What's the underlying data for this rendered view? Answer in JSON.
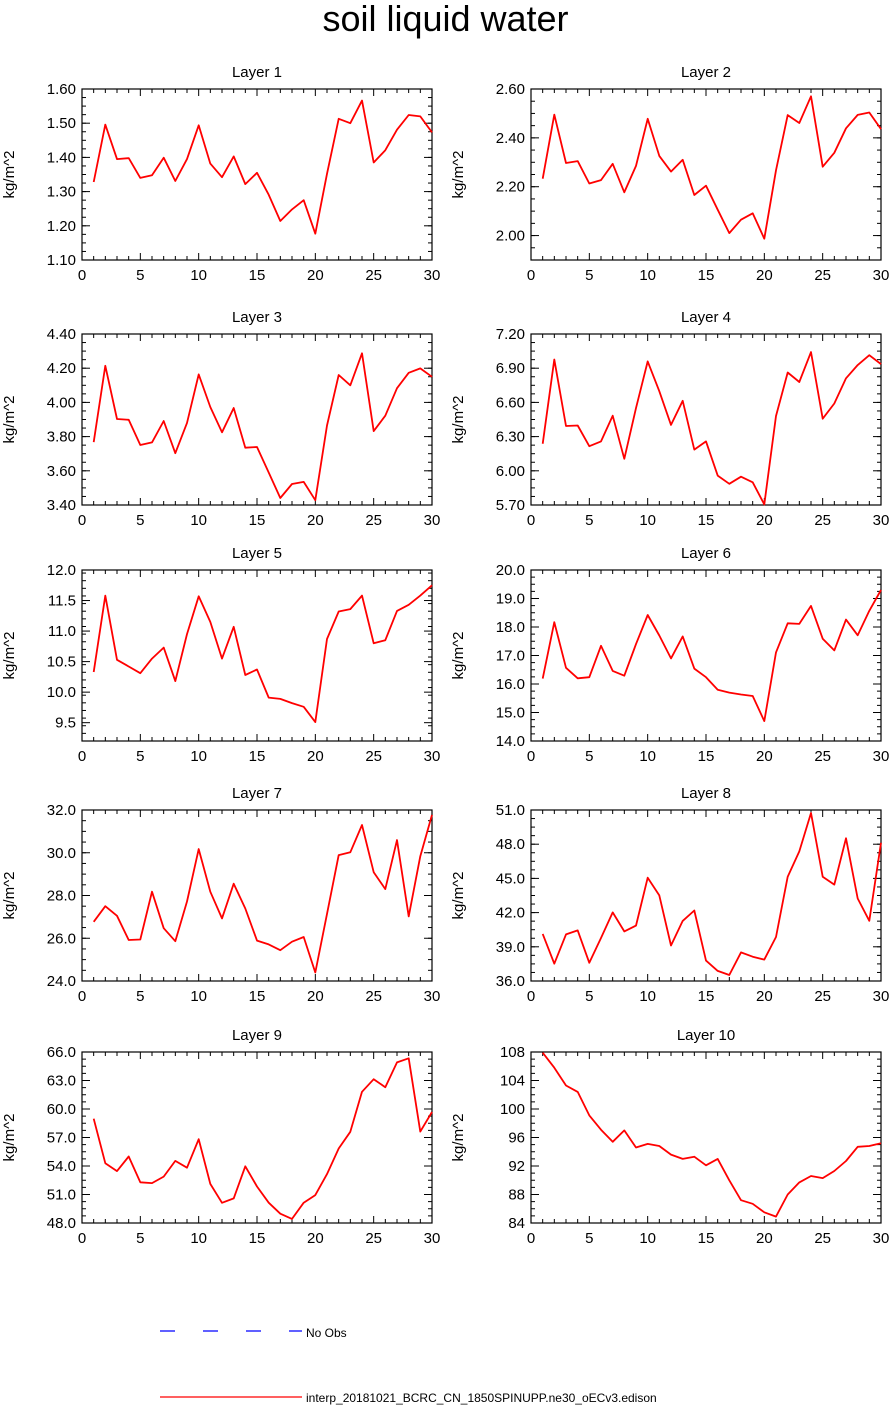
{
  "title": "soil liquid water",
  "colors": {
    "model": "#ff0000",
    "obs": "#0000ff"
  },
  "legend": [
    {
      "label": "No Obs",
      "style": "dashed",
      "color": "#0000ff"
    },
    {
      "label": "interp_20181021_BCRC_CN_1850SPINUPP.ne30_oECv3.edison",
      "style": "solid",
      "color": "#ff0000"
    }
  ],
  "chart_data": [
    {
      "type": "line",
      "title": "Layer 1",
      "ylabel": "kg/m^2",
      "xlim": [
        0,
        30
      ],
      "ylim": [
        1.1,
        1.6
      ],
      "xticks": [
        0,
        5,
        10,
        15,
        20,
        25,
        30
      ],
      "yticks": [
        "1.10",
        "1.20",
        "1.30",
        "1.40",
        "1.50",
        "1.60"
      ],
      "series": [
        {
          "x": [
            1,
            2,
            3,
            4,
            5,
            6,
            7,
            8,
            9,
            10,
            11,
            12,
            13,
            14,
            15,
            16,
            17,
            18,
            19,
            20,
            21,
            22,
            23,
            24,
            25,
            26,
            27,
            28,
            29,
            30
          ],
          "values": [
            1.328,
            1.496,
            1.395,
            1.398,
            1.34,
            1.348,
            1.399,
            1.331,
            1.395,
            1.494,
            1.382,
            1.342,
            1.403,
            1.322,
            1.355,
            1.291,
            1.214,
            1.248,
            1.275,
            1.177,
            1.352,
            1.513,
            1.5,
            1.566,
            1.385,
            1.421,
            1.481,
            1.524,
            1.52,
            1.473
          ]
        }
      ]
    },
    {
      "type": "line",
      "title": "Layer 2",
      "ylabel": "kg/m^2",
      "xlim": [
        0,
        30
      ],
      "ylim": [
        1.9,
        2.6
      ],
      "xticks": [
        0,
        5,
        10,
        15,
        20,
        25,
        30
      ],
      "yticks": [
        "2.00",
        "2.20",
        "2.40",
        "2.60"
      ],
      "series": [
        {
          "x": [
            1,
            2,
            3,
            4,
            5,
            6,
            7,
            8,
            9,
            10,
            11,
            12,
            13,
            14,
            15,
            16,
            17,
            18,
            19,
            20,
            21,
            22,
            23,
            24,
            25,
            26,
            27,
            28,
            29,
            30
          ],
          "values": [
            2.233,
            2.495,
            2.297,
            2.305,
            2.213,
            2.227,
            2.294,
            2.177,
            2.285,
            2.478,
            2.326,
            2.262,
            2.31,
            2.166,
            2.204,
            2.106,
            2.01,
            2.065,
            2.091,
            1.987,
            2.267,
            2.493,
            2.461,
            2.57,
            2.282,
            2.339,
            2.439,
            2.494,
            2.504,
            2.436
          ]
        }
      ]
    },
    {
      "type": "line",
      "title": "Layer 3",
      "ylabel": "kg/m^2",
      "xlim": [
        0,
        30
      ],
      "ylim": [
        3.4,
        4.4
      ],
      "xticks": [
        0,
        5,
        10,
        15,
        20,
        25,
        30
      ],
      "yticks": [
        "3.40",
        "3.60",
        "3.80",
        "4.00",
        "4.20",
        "4.40"
      ],
      "series": [
        {
          "x": [
            1,
            2,
            3,
            4,
            5,
            6,
            7,
            8,
            9,
            10,
            11,
            12,
            13,
            14,
            15,
            16,
            17,
            18,
            19,
            20,
            21,
            22,
            23,
            24,
            25,
            26,
            27,
            28,
            29,
            30
          ],
          "values": [
            3.768,
            4.214,
            3.903,
            3.898,
            3.751,
            3.766,
            3.891,
            3.703,
            3.88,
            4.164,
            3.973,
            3.825,
            3.967,
            3.735,
            3.739,
            3.59,
            3.441,
            3.523,
            3.535,
            3.428,
            3.865,
            4.16,
            4.1,
            4.287,
            3.832,
            3.922,
            4.083,
            4.173,
            4.199,
            4.15
          ]
        }
      ]
    },
    {
      "type": "line",
      "title": "Layer 4",
      "ylabel": "kg/m^2",
      "xlim": [
        0,
        30
      ],
      "ylim": [
        5.7,
        7.2
      ],
      "xticks": [
        0,
        5,
        10,
        15,
        20,
        25,
        30
      ],
      "yticks": [
        "5.70",
        "6.00",
        "6.30",
        "6.60",
        "6.90",
        "7.20"
      ],
      "series": [
        {
          "x": [
            1,
            2,
            3,
            4,
            5,
            6,
            7,
            8,
            9,
            10,
            11,
            12,
            13,
            14,
            15,
            16,
            17,
            18,
            19,
            20,
            21,
            22,
            23,
            24,
            25,
            26,
            27,
            28,
            29,
            30
          ],
          "values": [
            6.238,
            6.976,
            6.393,
            6.397,
            6.216,
            6.258,
            6.483,
            6.105,
            6.55,
            6.96,
            6.698,
            6.403,
            6.614,
            6.186,
            6.258,
            5.958,
            5.886,
            5.948,
            5.899,
            5.705,
            6.481,
            6.862,
            6.779,
            7.041,
            6.457,
            6.59,
            6.811,
            6.928,
            7.014,
            6.936
          ]
        }
      ]
    },
    {
      "type": "line",
      "title": "Layer 5",
      "ylabel": "kg/m^2",
      "xlim": [
        0,
        30
      ],
      "ylim": [
        9.2,
        12.0
      ],
      "xticks": [
        0,
        5,
        10,
        15,
        20,
        25,
        30
      ],
      "yticks": [
        "9.5",
        "10.0",
        "10.5",
        "11.0",
        "11.5",
        "12.0"
      ],
      "series": [
        {
          "x": [
            1,
            2,
            3,
            4,
            5,
            6,
            7,
            8,
            9,
            10,
            11,
            12,
            13,
            14,
            15,
            16,
            17,
            18,
            19,
            20,
            21,
            22,
            23,
            24,
            25,
            26,
            27,
            28,
            29,
            30
          ],
          "values": [
            10.33,
            11.58,
            10.53,
            10.42,
            10.31,
            10.55,
            10.73,
            10.18,
            10.95,
            11.57,
            11.15,
            10.55,
            11.07,
            10.28,
            10.37,
            9.91,
            9.89,
            9.82,
            9.76,
            9.51,
            10.87,
            11.32,
            11.36,
            11.58,
            10.8,
            10.85,
            11.33,
            11.43,
            11.58,
            11.75
          ]
        }
      ]
    },
    {
      "type": "line",
      "title": "Layer 6",
      "ylabel": "kg/m^2",
      "xlim": [
        0,
        30
      ],
      "ylim": [
        14.0,
        20.0
      ],
      "xticks": [
        0,
        5,
        10,
        15,
        20,
        25,
        30
      ],
      "yticks": [
        "14.0",
        "15.0",
        "16.0",
        "17.0",
        "18.0",
        "19.0",
        "20.0"
      ],
      "series": [
        {
          "x": [
            1,
            2,
            3,
            4,
            5,
            6,
            7,
            8,
            9,
            10,
            11,
            12,
            13,
            14,
            15,
            16,
            17,
            18,
            19,
            20,
            21,
            22,
            23,
            24,
            25,
            26,
            27,
            28,
            29,
            30
          ],
          "values": [
            16.19,
            18.17,
            16.57,
            16.2,
            16.24,
            17.34,
            16.46,
            16.29,
            17.4,
            18.42,
            17.7,
            16.9,
            17.67,
            16.54,
            16.24,
            15.8,
            15.7,
            15.63,
            15.58,
            14.7,
            17.11,
            18.13,
            18.11,
            18.74,
            17.59,
            17.18,
            18.26,
            17.71,
            18.57,
            19.3
          ]
        }
      ]
    },
    {
      "type": "line",
      "title": "Layer 7",
      "ylabel": "kg/m^2",
      "xlim": [
        0,
        30
      ],
      "ylim": [
        24.0,
        32.0
      ],
      "xticks": [
        0,
        5,
        10,
        15,
        20,
        25,
        30
      ],
      "yticks": [
        "24.0",
        "26.0",
        "28.0",
        "30.0",
        "32.0"
      ],
      "series": [
        {
          "x": [
            1,
            2,
            3,
            4,
            5,
            6,
            7,
            8,
            9,
            10,
            11,
            12,
            13,
            14,
            15,
            16,
            17,
            18,
            19,
            20,
            21,
            22,
            23,
            24,
            25,
            26,
            27,
            28,
            29,
            30
          ],
          "values": [
            26.77,
            27.5,
            27.05,
            25.92,
            25.94,
            28.18,
            26.47,
            25.86,
            27.72,
            30.17,
            28.18,
            26.93,
            28.55,
            27.39,
            25.89,
            25.71,
            25.44,
            25.84,
            26.06,
            24.4,
            27.14,
            29.89,
            30.02,
            31.3,
            29.09,
            28.3,
            30.59,
            27.02,
            29.84,
            31.77
          ]
        }
      ]
    },
    {
      "type": "line",
      "title": "Layer 8",
      "ylabel": "kg/m^2",
      "xlim": [
        0,
        30
      ],
      "ylim": [
        36.0,
        51.0
      ],
      "xticks": [
        0,
        5,
        10,
        15,
        20,
        25,
        30
      ],
      "yticks": [
        "36.0",
        "39.0",
        "42.0",
        "45.0",
        "48.0",
        "51.0"
      ],
      "series": [
        {
          "x": [
            1,
            2,
            3,
            4,
            5,
            6,
            7,
            8,
            9,
            10,
            11,
            12,
            13,
            14,
            15,
            16,
            17,
            18,
            19,
            20,
            21,
            22,
            23,
            24,
            25,
            26,
            27,
            28,
            29,
            30
          ],
          "values": [
            40.13,
            37.52,
            40.09,
            40.44,
            37.6,
            39.77,
            42.02,
            40.35,
            40.86,
            45.06,
            43.51,
            39.11,
            41.27,
            42.18,
            37.79,
            36.89,
            36.53,
            38.51,
            38.13,
            37.88,
            39.86,
            45.15,
            47.37,
            50.74,
            45.15,
            44.46,
            48.52,
            43.24,
            41.28,
            48.12
          ]
        }
      ]
    },
    {
      "type": "line",
      "title": "Layer 9",
      "ylabel": "kg/m^2",
      "xlim": [
        0,
        30
      ],
      "ylim": [
        48.0,
        66.0
      ],
      "xticks": [
        0,
        5,
        10,
        15,
        20,
        25,
        30
      ],
      "yticks": [
        "48.0",
        "51.0",
        "54.0",
        "57.0",
        "60.0",
        "63.0",
        "66.0"
      ],
      "series": [
        {
          "x": [
            1,
            2,
            3,
            4,
            5,
            6,
            7,
            8,
            9,
            10,
            11,
            12,
            13,
            14,
            15,
            16,
            17,
            18,
            19,
            20,
            21,
            22,
            23,
            24,
            25,
            26,
            27,
            28,
            29,
            30
          ],
          "values": [
            58.98,
            54.29,
            53.46,
            55.0,
            52.28,
            52.2,
            52.88,
            54.54,
            53.82,
            56.82,
            52.12,
            50.13,
            50.59,
            53.97,
            51.84,
            50.14,
            48.98,
            48.43,
            50.14,
            50.94,
            53.15,
            55.84,
            57.6,
            61.81,
            63.14,
            62.3,
            64.91,
            65.34,
            57.62,
            59.68
          ]
        }
      ]
    },
    {
      "type": "line",
      "title": "Layer 10",
      "ylabel": "kg/m^2",
      "xlim": [
        0,
        30
      ],
      "ylim": [
        84,
        108
      ],
      "xticks": [
        0,
        5,
        10,
        15,
        20,
        25,
        30
      ],
      "yticks": [
        "84",
        "88",
        "92",
        "96",
        "100",
        "104",
        "108"
      ],
      "series": [
        {
          "x": [
            1,
            2,
            3,
            4,
            5,
            6,
            7,
            8,
            9,
            10,
            11,
            12,
            13,
            14,
            15,
            16,
            17,
            18,
            19,
            20,
            21,
            22,
            23,
            24,
            25,
            26,
            27,
            28,
            29,
            30
          ],
          "values": [
            107.9,
            105.8,
            103.3,
            102.4,
            99.1,
            97.1,
            95.4,
            97.0,
            94.6,
            95.1,
            94.8,
            93.6,
            93.0,
            93.3,
            92.1,
            93.0,
            90.0,
            87.2,
            86.7,
            85.5,
            84.9,
            88.0,
            89.7,
            90.6,
            90.3,
            91.3,
            92.7,
            94.7,
            94.8,
            95.2
          ]
        }
      ]
    }
  ]
}
